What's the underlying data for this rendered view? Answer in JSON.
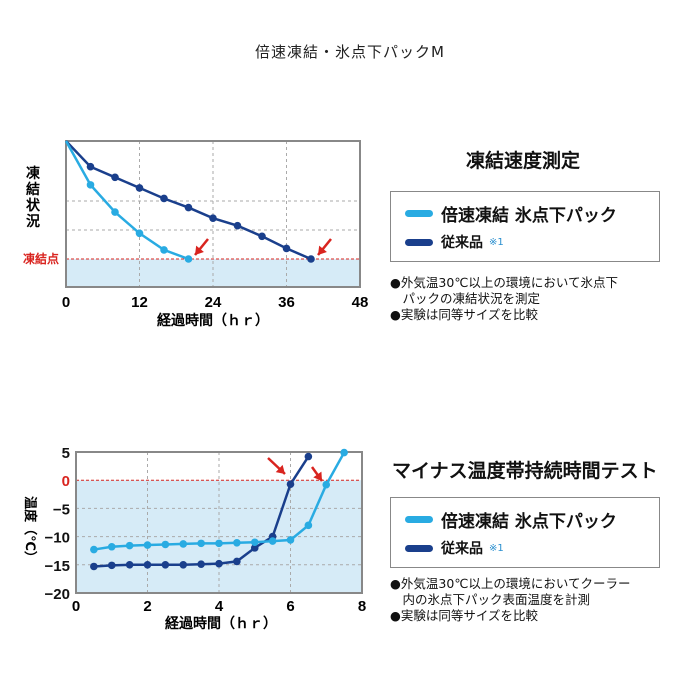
{
  "page_title": "倍速凍結・氷点下パックM",
  "colors": {
    "fast": "#29abe2",
    "conv": "#1a3f8c",
    "accent_red": "#d9241f",
    "fill_blue": "#d6ebf7"
  },
  "chart_data": [
    {
      "type": "line",
      "title": "凍結速度測定",
      "xlabel": "経過時間（ｈｒ）",
      "ylabel": "凍結状況",
      "xlim": [
        0,
        48
      ],
      "x_ticks": [
        0,
        12,
        24,
        36,
        48
      ],
      "x_tick_labels": [
        "0",
        "12",
        "24",
        "36",
        "48"
      ],
      "grid": true,
      "reference_line_label": "凍結点",
      "series": [
        {
          "name": "倍速凍結 氷点下パック",
          "x": [
            0,
            4,
            8,
            12,
            16,
            20
          ],
          "y": [
            1.0,
            0.71,
            0.53,
            0.39,
            0.28,
            0.22
          ]
        },
        {
          "name": "従来品",
          "note": "※1",
          "x": [
            0,
            4,
            8,
            12,
            16,
            20,
            24,
            28,
            32,
            36,
            40
          ],
          "y": [
            1.0,
            0.83,
            0.76,
            0.69,
            0.62,
            0.56,
            0.49,
            0.44,
            0.37,
            0.29,
            0.22
          ]
        }
      ],
      "annotations": [
        "arrow at x=20 pointing to freezing point",
        "arrow at x=40 pointing to freezing point"
      ],
      "legend": "right panel",
      "notes": [
        "●外気温30℃以上の環境において氷点下",
        "　パックの凍結状況を測定",
        "●実験は同等サイズを比較"
      ]
    },
    {
      "type": "line",
      "title": "マイナス温度帯持続時間テスト",
      "xlabel": "経過時間（ｈｒ）",
      "ylabel": "温度（℃）",
      "xlim": [
        0,
        8
      ],
      "ylim": [
        -20,
        5
      ],
      "x_ticks": [
        0,
        2,
        4,
        6,
        8
      ],
      "y_ticks": [
        5,
        0,
        -5,
        -10,
        -15,
        -20
      ],
      "y_tick_labels": [
        "5",
        "0",
        "−5",
        "−10",
        "−15",
        "−20"
      ],
      "grid": true,
      "series": [
        {
          "name": "倍速凍結 氷点下パック",
          "x": [
            0.5,
            1,
            1.5,
            2,
            2.5,
            3,
            3.5,
            4,
            4.5,
            5,
            5.5,
            6,
            6.5,
            7,
            7.5
          ],
          "y": [
            -12.3,
            -11.8,
            -11.6,
            -11.5,
            -11.4,
            -11.3,
            -11.2,
            -11.2,
            -11.1,
            -11.0,
            -10.8,
            -10.6,
            -8.0,
            -0.8,
            4.9
          ]
        },
        {
          "name": "従来品",
          "note": "※1",
          "x": [
            0.5,
            1,
            1.5,
            2,
            2.5,
            3,
            3.5,
            4,
            4.5,
            5,
            5.5,
            6,
            6.5
          ],
          "y": [
            -15.3,
            -15.1,
            -15.0,
            -15.0,
            -15.0,
            -15.0,
            -14.9,
            -14.8,
            -14.4,
            -12.0,
            -10.0,
            -0.7,
            4.2
          ]
        }
      ],
      "annotations": [
        "arrow at x=6 near 0℃",
        "arrow at x=7 near 0℃"
      ],
      "legend": "right panel",
      "notes": [
        "●外気温30℃以上の環境においてクーラー",
        "　内の氷点下パック表面温度を計測",
        "●実験は同等サイズを比較"
      ]
    }
  ]
}
